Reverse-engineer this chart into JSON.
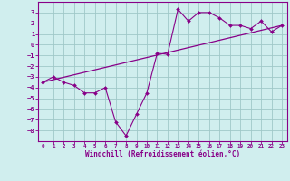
{
  "x": [
    0,
    1,
    2,
    3,
    4,
    5,
    6,
    7,
    8,
    9,
    10,
    11,
    12,
    13,
    14,
    15,
    16,
    17,
    18,
    19,
    20,
    21,
    22,
    23
  ],
  "y_data": [
    -3.5,
    -3.0,
    -3.5,
    -3.8,
    -4.5,
    -4.5,
    -4.0,
    -7.2,
    -8.5,
    -6.5,
    -4.5,
    -0.8,
    -0.9,
    3.3,
    2.2,
    3.0,
    3.0,
    2.5,
    1.8,
    1.8,
    1.5,
    2.2,
    1.2,
    1.8
  ],
  "trend_x": [
    0,
    23
  ],
  "trend_y": [
    -3.5,
    1.8
  ],
  "line_color": "#880088",
  "bg_color": "#d0eeee",
  "grid_color": "#a0c8c8",
  "xlabel": "Windchill (Refroidissement éolien,°C)",
  "ylim": [
    -9,
    4
  ],
  "xlim": [
    -0.5,
    23.5
  ],
  "yticks": [
    -8,
    -7,
    -6,
    -5,
    -4,
    -3,
    -2,
    -1,
    0,
    1,
    2,
    3
  ],
  "xticks": [
    0,
    1,
    2,
    3,
    4,
    5,
    6,
    7,
    8,
    9,
    10,
    11,
    12,
    13,
    14,
    15,
    16,
    17,
    18,
    19,
    20,
    21,
    22,
    23
  ]
}
